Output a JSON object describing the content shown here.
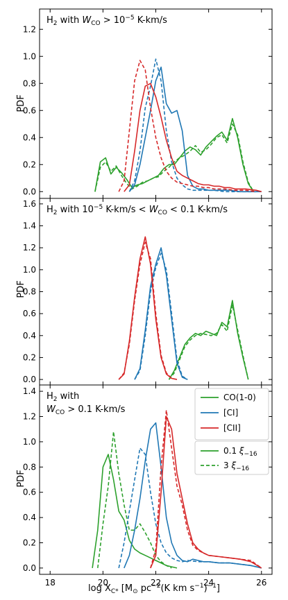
{
  "chart_data": {
    "type": "line",
    "xlabel": "log X",
    "xlabel_sub": "C*",
    "xlabel_unit_a": " [M",
    "xlabel_sun": "⊙",
    "xlabel_unit_b": " pc",
    "xlabel_sup1": "−2",
    "xlabel_unit_c": "(K km s",
    "xlabel_sup2": "−1",
    "xlabel_unit_d": ")",
    "xlabel_sup3": "−1",
    "xlabel_end": "]",
    "ylabel": "PDF",
    "xlim": [
      17.6,
      26.4
    ],
    "x_ticks": [
      "18",
      "20",
      "22",
      "24",
      "26"
    ],
    "x_tick_values": [
      18,
      20,
      22,
      24,
      26
    ],
    "colors": {
      "co": "#2ca02c",
      "ci": "#1f77b4",
      "cii": "#d62728"
    },
    "legend_lines": [
      {
        "label": "CO(1-0)",
        "color": "#2ca02c"
      },
      {
        "label": "[CI]",
        "color": "#1f77b4"
      },
      {
        "label": "[CII]",
        "color": "#d62728"
      }
    ],
    "legend_styles": [
      {
        "label_num": "0.1 ",
        "label_sym": "ξ",
        "label_sub": "−16",
        "style": "solid"
      },
      {
        "label_num": "3 ",
        "label_sym": "ξ",
        "label_sub": "−16",
        "style": "dashed"
      }
    ],
    "panels": [
      {
        "ann1_a": "H",
        "ann1_sub": "2",
        "ann1_b": " with ",
        "ann1_w": "W",
        "ann1_wsub": "CO",
        "ann1_c": " > 10",
        "ann1_sup": "−5",
        "ann1_d": " K-km/s",
        "ylim": [
          -0.05,
          1.35
        ],
        "y_ticks": [
          "0.0",
          "0.2",
          "0.4",
          "0.6",
          "0.8",
          "1.0",
          "1.2"
        ],
        "y_tick_values": [
          0,
          0.2,
          0.4,
          0.6,
          0.8,
          1.0,
          1.2
        ],
        "series": [
          {
            "line": "co",
            "style": "solid",
            "x": [
              19.7,
              19.9,
              20.1,
              20.3,
              20.5,
              20.7,
              20.9,
              21.1,
              21.3,
              21.5,
              21.7,
              21.9,
              22.1,
              22.3,
              22.5,
              22.7,
              22.9,
              23.1,
              23.3,
              23.5,
              23.7,
              23.9,
              24.1,
              24.3,
              24.5,
              24.7,
              24.9,
              25.1,
              25.3,
              25.5,
              25.7
            ],
            "y": [
              0.0,
              0.22,
              0.25,
              0.13,
              0.18,
              0.14,
              0.09,
              0.03,
              0.05,
              0.06,
              0.08,
              0.1,
              0.12,
              0.17,
              0.2,
              0.2,
              0.25,
              0.3,
              0.33,
              0.31,
              0.27,
              0.33,
              0.37,
              0.41,
              0.44,
              0.38,
              0.54,
              0.4,
              0.2,
              0.06,
              0.0
            ]
          },
          {
            "line": "co",
            "style": "dashed",
            "x": [
              19.7,
              19.9,
              20.1,
              20.3,
              20.5,
              20.7,
              20.9,
              21.1,
              21.3,
              21.5,
              21.7,
              21.9,
              22.1,
              22.3,
              22.5,
              22.7,
              22.9,
              23.1,
              23.3,
              23.5,
              23.7,
              23.9,
              24.1,
              24.3,
              24.5,
              24.7,
              24.9,
              25.1,
              25.3,
              25.5,
              25.7
            ],
            "y": [
              0.0,
              0.18,
              0.22,
              0.15,
              0.19,
              0.12,
              0.06,
              0.02,
              0.04,
              0.07,
              0.08,
              0.1,
              0.11,
              0.15,
              0.18,
              0.22,
              0.25,
              0.27,
              0.3,
              0.34,
              0.29,
              0.31,
              0.35,
              0.4,
              0.42,
              0.36,
              0.5,
              0.42,
              0.22,
              0.07,
              0.0
            ]
          },
          {
            "line": "ci",
            "style": "solid",
            "x": [
              21.0,
              21.2,
              21.4,
              21.6,
              21.8,
              22.0,
              22.2,
              22.4,
              22.6,
              22.8,
              23.0,
              23.2,
              23.4,
              23.6,
              23.8,
              24.0,
              24.4,
              24.8,
              25.2,
              25.6,
              26.0
            ],
            "y": [
              0.0,
              0.05,
              0.2,
              0.4,
              0.6,
              0.82,
              0.92,
              0.65,
              0.58,
              0.6,
              0.45,
              0.12,
              0.04,
              0.02,
              0.02,
              0.01,
              0.01,
              0.01,
              0.0,
              0.0,
              0.0
            ]
          },
          {
            "line": "ci",
            "style": "dashed",
            "x": [
              21.0,
              21.2,
              21.4,
              21.6,
              21.8,
              22.0,
              22.2,
              22.4,
              22.6,
              22.8,
              23.0,
              23.2,
              23.4,
              23.8,
              24.2,
              24.6,
              25.0,
              25.4,
              25.8
            ],
            "y": [
              0.0,
              0.08,
              0.3,
              0.62,
              0.78,
              0.98,
              0.82,
              0.45,
              0.22,
              0.1,
              0.05,
              0.02,
              0.01,
              0.01,
              0.01,
              0.0,
              0.0,
              0.0,
              0.0
            ]
          },
          {
            "line": "cii",
            "style": "solid",
            "x": [
              20.8,
              21.0,
              21.2,
              21.4,
              21.6,
              21.8,
              22.0,
              22.2,
              22.4,
              22.6,
              22.8,
              23.0,
              23.2,
              23.4,
              23.6,
              23.8,
              24.0,
              24.2,
              24.4,
              24.6,
              24.8,
              25.0,
              25.4,
              25.8,
              26.0
            ],
            "y": [
              0.0,
              0.05,
              0.3,
              0.6,
              0.78,
              0.8,
              0.7,
              0.55,
              0.38,
              0.25,
              0.15,
              0.12,
              0.1,
              0.08,
              0.06,
              0.05,
              0.05,
              0.04,
              0.04,
              0.03,
              0.03,
              0.02,
              0.02,
              0.01,
              0.0
            ]
          },
          {
            "line": "cii",
            "style": "dashed",
            "x": [
              20.6,
              20.8,
              21.0,
              21.2,
              21.4,
              21.6,
              21.8,
              22.0,
              22.2,
              22.4,
              22.6,
              22.8,
              23.0,
              23.2,
              23.4,
              23.6,
              23.8,
              24.0,
              24.2,
              24.6,
              25.0,
              25.4,
              25.8
            ],
            "y": [
              0.0,
              0.08,
              0.45,
              0.82,
              0.97,
              0.9,
              0.62,
              0.4,
              0.25,
              0.15,
              0.1,
              0.07,
              0.06,
              0.05,
              0.04,
              0.04,
              0.03,
              0.03,
              0.02,
              0.02,
              0.01,
              0.01,
              0.0
            ]
          }
        ]
      },
      {
        "ann1_a": "H",
        "ann1_sub": "2",
        "ann1_b": " with 10",
        "ann1_w": "",
        "ann1_wsub": "",
        "ann1_c": "",
        "ann1_sup": "−5",
        "ann1_d": " K-km/s  < ",
        "ann1_w2": "W",
        "ann1_wsub2": "CO",
        "ann1_e": " < 0.1 K-km/s",
        "ylim": [
          -0.05,
          1.65
        ],
        "y_ticks": [
          "0.0",
          "0.2",
          "0.4",
          "0.6",
          "0.8",
          "1.0",
          "1.2",
          "1.4",
          "1.6"
        ],
        "y_tick_values": [
          0,
          0.2,
          0.4,
          0.6,
          0.8,
          1.0,
          1.2,
          1.4,
          1.6
        ],
        "series": [
          {
            "line": "co",
            "style": "solid",
            "x": [
              22.5,
              22.7,
              22.9,
              23.1,
              23.3,
              23.5,
              23.7,
              23.9,
              24.1,
              24.3,
              24.5,
              24.7,
              24.9,
              25.1,
              25.3,
              25.5
            ],
            "y": [
              0.0,
              0.08,
              0.2,
              0.32,
              0.38,
              0.42,
              0.4,
              0.44,
              0.42,
              0.4,
              0.52,
              0.48,
              0.72,
              0.42,
              0.2,
              0.0
            ]
          },
          {
            "line": "co",
            "style": "dashed",
            "x": [
              22.5,
              22.7,
              22.9,
              23.1,
              23.3,
              23.5,
              23.7,
              23.9,
              24.1,
              24.3,
              24.5,
              24.7,
              24.9,
              25.1,
              25.3,
              25.5
            ],
            "y": [
              0.0,
              0.06,
              0.18,
              0.3,
              0.36,
              0.4,
              0.42,
              0.41,
              0.4,
              0.42,
              0.5,
              0.44,
              0.68,
              0.45,
              0.22,
              0.0
            ]
          },
          {
            "line": "ci",
            "style": "solid",
            "x": [
              21.2,
              21.4,
              21.6,
              21.8,
              22.0,
              22.2,
              22.4,
              22.6,
              22.8,
              23.0,
              23.2
            ],
            "y": [
              0.0,
              0.1,
              0.45,
              0.85,
              1.05,
              1.2,
              0.95,
              0.55,
              0.15,
              0.02,
              0.0
            ]
          },
          {
            "line": "ci",
            "style": "dashed",
            "x": [
              21.2,
              21.4,
              21.6,
              21.8,
              22.0,
              22.2,
              22.4,
              22.6,
              22.8,
              23.0,
              23.2
            ],
            "y": [
              0.0,
              0.08,
              0.4,
              0.8,
              1.02,
              1.15,
              1.0,
              0.6,
              0.18,
              0.03,
              0.0
            ]
          },
          {
            "line": "cii",
            "style": "solid",
            "x": [
              20.6,
              20.8,
              21.0,
              21.2,
              21.4,
              21.6,
              21.8,
              22.0,
              22.2,
              22.4,
              22.6,
              22.8
            ],
            "y": [
              0.0,
              0.05,
              0.35,
              0.75,
              1.1,
              1.3,
              1.05,
              0.55,
              0.2,
              0.05,
              0.01,
              0.0
            ]
          },
          {
            "line": "cii",
            "style": "dashed",
            "x": [
              20.6,
              20.8,
              21.0,
              21.2,
              21.4,
              21.6,
              21.8,
              22.0,
              22.2,
              22.4,
              22.6,
              22.8
            ],
            "y": [
              0.0,
              0.06,
              0.32,
              0.72,
              1.05,
              1.25,
              1.1,
              0.6,
              0.22,
              0.06,
              0.01,
              0.0
            ]
          }
        ]
      },
      {
        "ann1_a": "H",
        "ann1_sub": "2",
        "ann1_b": " with",
        "ann2_w": "W",
        "ann2_wsub": "CO",
        "ann2_c": " > 0.1 K-km/s",
        "ylim": [
          -0.05,
          1.45
        ],
        "y_ticks": [
          "0.0",
          "0.2",
          "0.4",
          "0.6",
          "0.8",
          "1.0",
          "1.2",
          "1.4"
        ],
        "y_tick_values": [
          0,
          0.2,
          0.4,
          0.6,
          0.8,
          1.0,
          1.2,
          1.4
        ],
        "series": [
          {
            "line": "co",
            "style": "solid",
            "x": [
              19.6,
              19.8,
              20.0,
              20.2,
              20.4,
              20.6,
              20.8,
              21.0,
              21.2,
              21.4,
              21.6,
              21.8,
              22.0,
              22.2,
              22.4,
              22.6,
              22.8
            ],
            "y": [
              0.0,
              0.3,
              0.8,
              0.9,
              0.7,
              0.45,
              0.38,
              0.22,
              0.15,
              0.12,
              0.1,
              0.08,
              0.06,
              0.04,
              0.02,
              0.01,
              0.0
            ]
          },
          {
            "line": "co",
            "style": "dashed",
            "x": [
              19.8,
              20.0,
              20.2,
              20.4,
              20.6,
              20.8,
              21.0,
              21.2,
              21.4,
              21.6,
              21.8,
              22.0,
              22.2,
              22.4,
              22.6
            ],
            "y": [
              0.0,
              0.35,
              0.65,
              1.08,
              0.75,
              0.5,
              0.3,
              0.3,
              0.35,
              0.28,
              0.2,
              0.1,
              0.05,
              0.02,
              0.0
            ]
          },
          {
            "line": "ci",
            "style": "solid",
            "x": [
              20.8,
              21.0,
              21.2,
              21.4,
              21.6,
              21.8,
              22.0,
              22.2,
              22.4,
              22.6,
              22.8,
              23.0,
              23.2,
              23.4,
              23.6,
              23.8,
              24.0,
              24.4,
              24.8,
              25.2,
              25.6,
              26.0
            ],
            "y": [
              0.0,
              0.1,
              0.3,
              0.55,
              0.85,
              1.1,
              1.15,
              0.8,
              0.4,
              0.2,
              0.1,
              0.06,
              0.05,
              0.07,
              0.06,
              0.05,
              0.05,
              0.04,
              0.04,
              0.03,
              0.02,
              0.0
            ]
          },
          {
            "line": "ci",
            "style": "dashed",
            "x": [
              20.6,
              20.8,
              21.0,
              21.2,
              21.4,
              21.6,
              21.8,
              22.0,
              22.2,
              22.4,
              22.6,
              22.8,
              23.0,
              23.2,
              23.6,
              24.0,
              24.4,
              24.8,
              25.2,
              25.6,
              26.0
            ],
            "y": [
              0.0,
              0.2,
              0.45,
              0.7,
              0.95,
              0.9,
              0.6,
              0.35,
              0.2,
              0.12,
              0.08,
              0.06,
              0.05,
              0.06,
              0.05,
              0.05,
              0.04,
              0.04,
              0.03,
              0.02,
              0.0
            ]
          },
          {
            "line": "cii",
            "style": "solid",
            "x": [
              21.8,
              22.0,
              22.2,
              22.4,
              22.6,
              22.8,
              23.0,
              23.2,
              23.4,
              23.6,
              23.8,
              24.0,
              24.4,
              24.8,
              25.2,
              25.6,
              26.0
            ],
            "y": [
              0.0,
              0.1,
              0.6,
              1.2,
              1.1,
              0.75,
              0.55,
              0.35,
              0.2,
              0.15,
              0.12,
              0.1,
              0.09,
              0.08,
              0.07,
              0.05,
              0.0
            ]
          },
          {
            "line": "cii",
            "style": "dashed",
            "x": [
              21.8,
              22.0,
              22.2,
              22.4,
              22.6,
              22.8,
              23.0,
              23.2,
              23.4,
              23.6,
              23.8,
              24.0,
              24.4,
              24.8,
              25.2,
              25.6,
              26.0
            ],
            "y": [
              0.0,
              0.15,
              0.8,
              1.25,
              0.95,
              0.65,
              0.5,
              0.3,
              0.18,
              0.14,
              0.12,
              0.1,
              0.09,
              0.08,
              0.07,
              0.06,
              0.0
            ]
          }
        ]
      }
    ]
  }
}
